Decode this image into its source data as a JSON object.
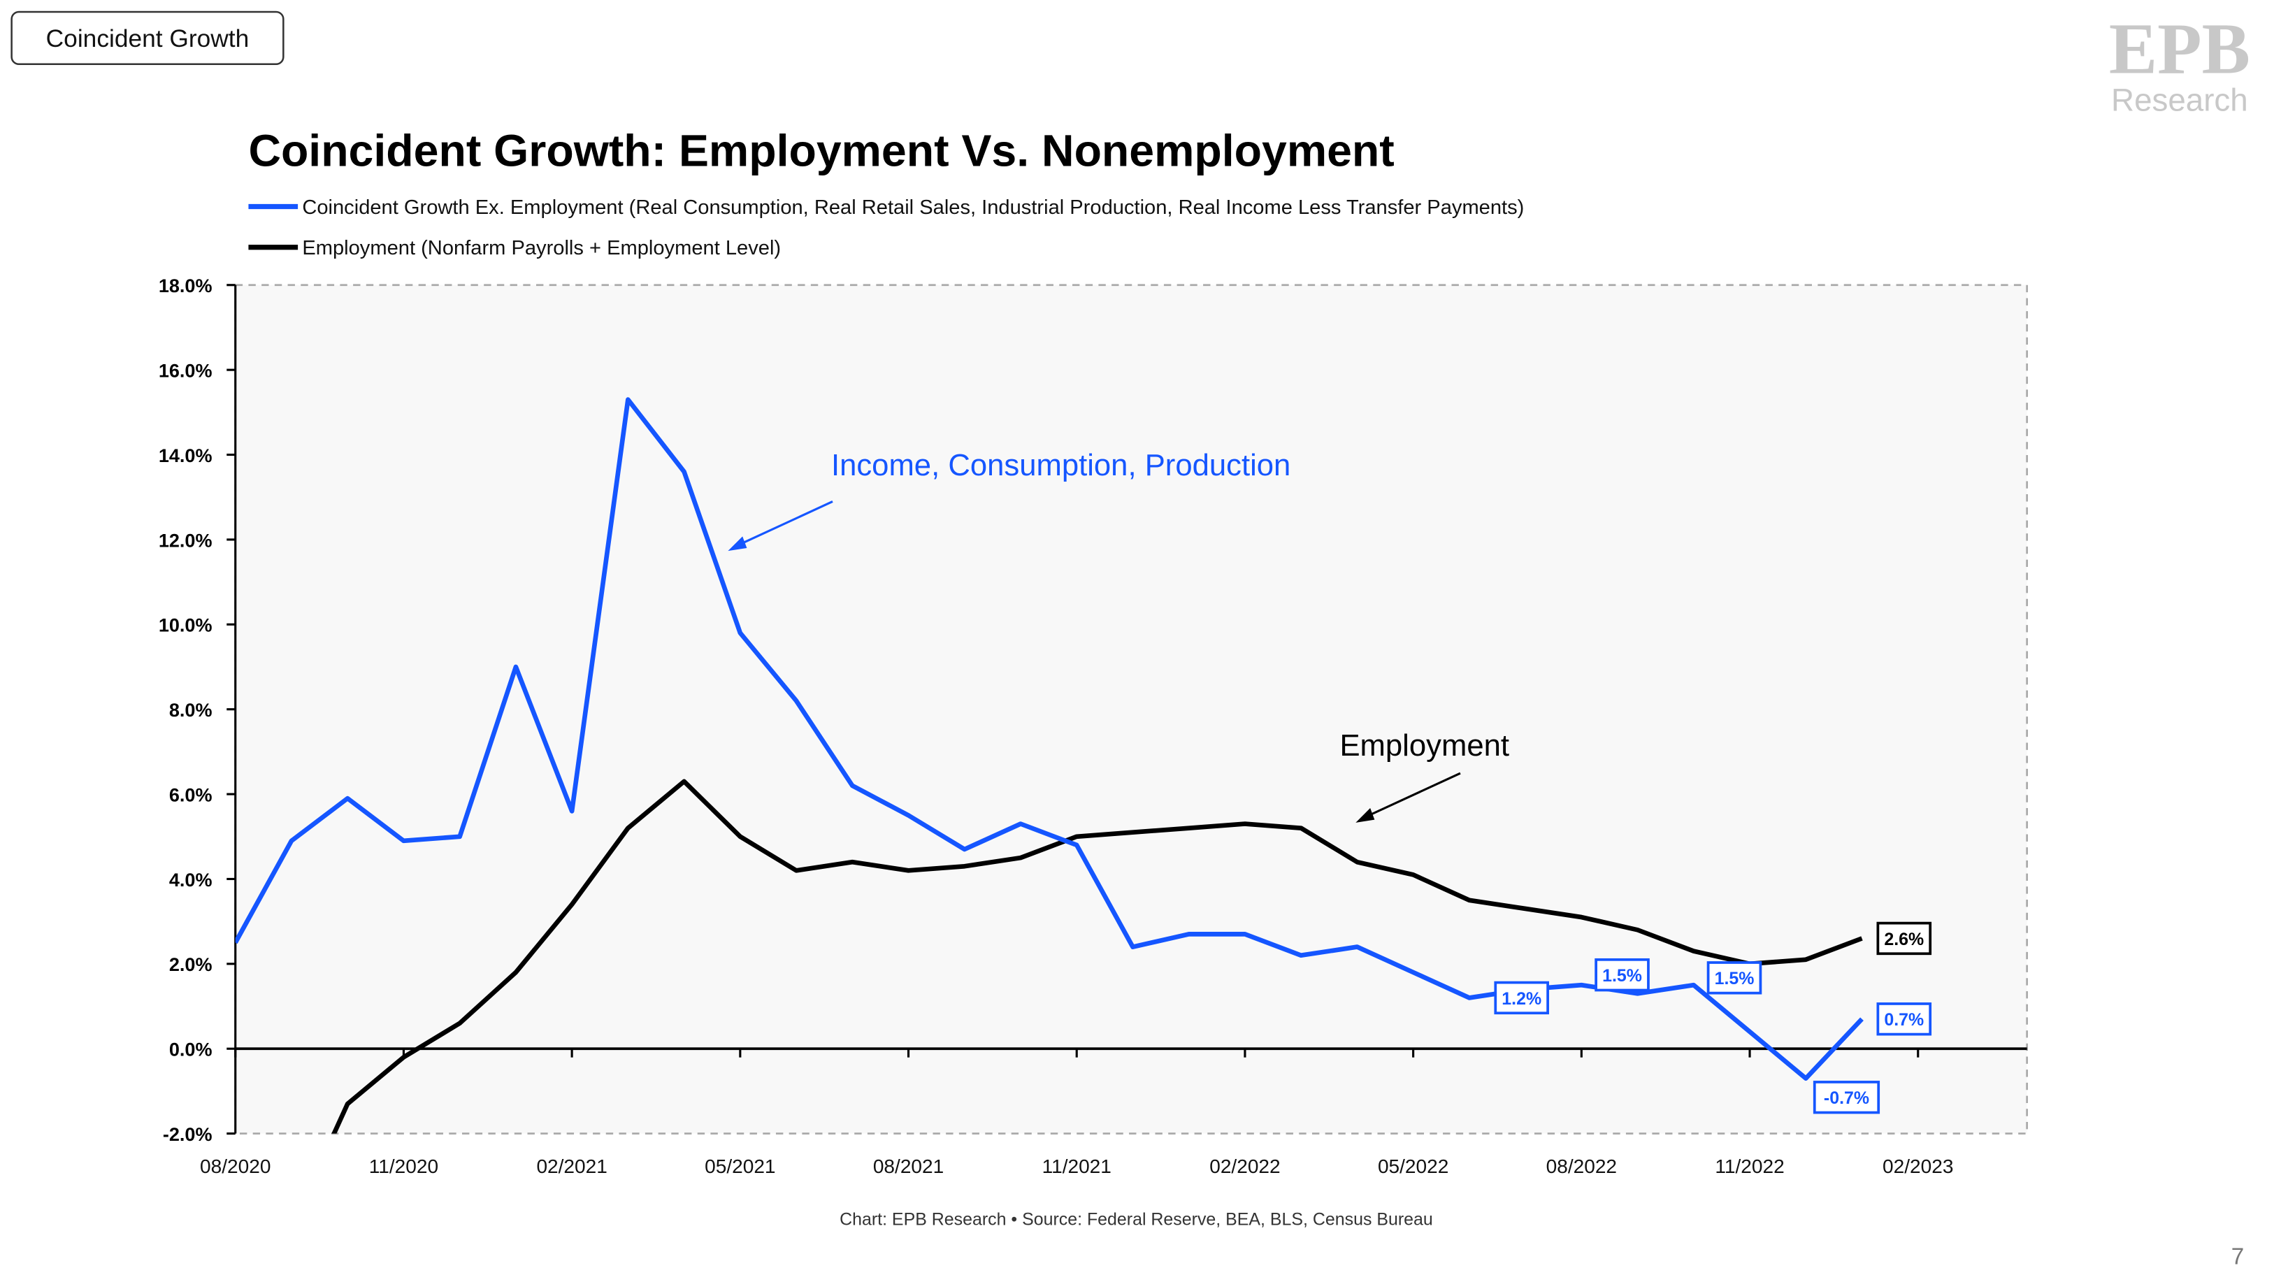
{
  "header": {
    "tab_label": "Coincident Growth",
    "page_number": "7"
  },
  "logo": {
    "mark": "EPB",
    "text": "Research"
  },
  "colors": {
    "blue": "#1556ff",
    "black": "#000000",
    "plot_bg": "#f8f8f8",
    "logo_gray": "#c8c8c8"
  },
  "chart_data": {
    "type": "line",
    "title": "Coincident Growth: Employment Vs. Nonemployment",
    "footer": "Chart: EPB Research  •  Source: Federal Reserve, BEA, BLS, Census Bureau",
    "ylim": [
      -2,
      18
    ],
    "yticks": [
      18,
      16,
      14,
      12,
      10,
      8,
      6,
      4,
      2,
      0,
      -2
    ],
    "ytick_labels": [
      "18.0%",
      "16.0%",
      "14.0%",
      "12.0%",
      "10.0%",
      "8.0%",
      "6.0%",
      "4.0%",
      "2.0%",
      "0.0%",
      "-2.0%"
    ],
    "xtick_labels": [
      "08/2020",
      "11/2020",
      "02/2021",
      "05/2021",
      "08/2021",
      "11/2021",
      "02/2022",
      "05/2022",
      "08/2022",
      "11/2022",
      "02/2023"
    ],
    "x": [
      "08/2020",
      "09/2020",
      "10/2020",
      "11/2020",
      "12/2020",
      "01/2021",
      "02/2021",
      "03/2021",
      "04/2021",
      "05/2021",
      "06/2021",
      "07/2021",
      "08/2021",
      "09/2021",
      "10/2021",
      "11/2021",
      "12/2021",
      "01/2022",
      "02/2022",
      "03/2022",
      "04/2022",
      "05/2022",
      "06/2022",
      "07/2022",
      "08/2022",
      "09/2022",
      "10/2022",
      "11/2022",
      "12/2022",
      "01/2023"
    ],
    "series": [
      {
        "name": "Coincident Growth Ex. Employment (Real Consumption, Real Retail Sales, Industrial Production, Real Income Less Transfer Payments)",
        "color": "#1556ff",
        "values": [
          2.5,
          4.9,
          5.9,
          4.9,
          5.0,
          9.0,
          5.6,
          15.3,
          13.6,
          9.8,
          8.2,
          6.2,
          5.5,
          4.7,
          5.3,
          4.8,
          2.4,
          2.7,
          2.7,
          2.2,
          2.4,
          1.8,
          1.2,
          1.4,
          1.5,
          1.3,
          1.5,
          0.4,
          -0.7,
          0.7
        ]
      },
      {
        "name": "Employment (Nonfarm Payrolls + Employment Level)",
        "color": "#000000",
        "values": [
          null,
          -4.2,
          -1.3,
          -0.2,
          0.6,
          1.8,
          3.4,
          5.2,
          6.3,
          5.0,
          4.2,
          4.4,
          4.2,
          4.3,
          4.5,
          5.0,
          5.1,
          5.2,
          5.3,
          5.2,
          4.4,
          4.1,
          3.5,
          3.3,
          3.1,
          2.8,
          2.3,
          2.0,
          2.1,
          2.6
        ]
      }
    ],
    "annotations": [
      {
        "text": "Income, Consumption, Production",
        "color": "#1556ff"
      },
      {
        "text": "Employment",
        "color": "#000000"
      }
    ],
    "data_labels": [
      {
        "series": 0,
        "x": "06/2022",
        "text": "1.2%"
      },
      {
        "series": 0,
        "x": "08/2022",
        "text": "1.5%"
      },
      {
        "series": 0,
        "x": "10/2022",
        "text": "1.5%"
      },
      {
        "series": 0,
        "x": "12/2022",
        "text": "-0.7%"
      },
      {
        "series": 0,
        "x": "01/2023",
        "text": "0.7%"
      },
      {
        "series": 1,
        "x": "01/2023",
        "text": "2.6%"
      }
    ],
    "grid": false,
    "legend_position": "top-left"
  }
}
